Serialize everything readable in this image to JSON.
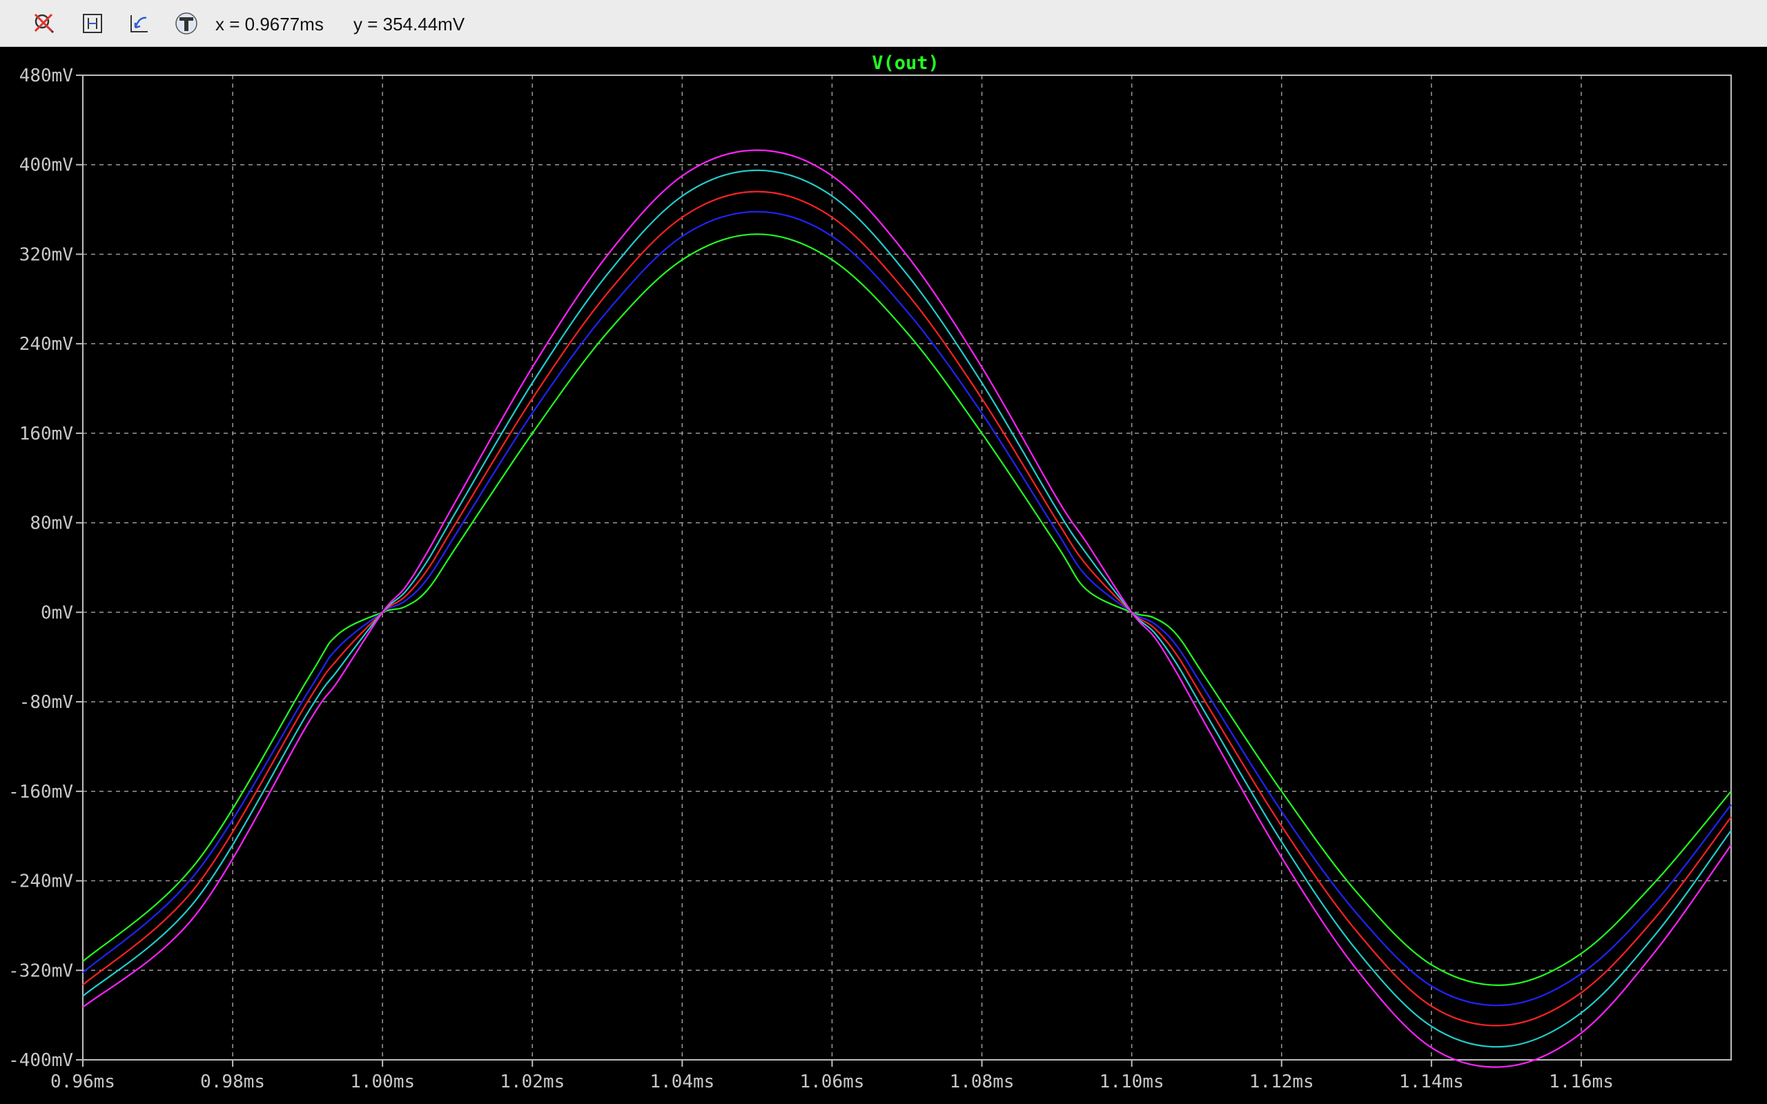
{
  "toolbar": {
    "buttons": [
      {
        "name": "autorange-icon",
        "label": "Autorange"
      },
      {
        "name": "zoom-extent-icon",
        "label": "Zoom to fit"
      },
      {
        "name": "zoom-back-icon",
        "label": "Zoom back"
      },
      {
        "name": "cursor-tool-icon",
        "label": "Cursor"
      }
    ],
    "readout_x": "x = 0.9677ms",
    "readout_y": "y = 354.44mV"
  },
  "chart_data": {
    "type": "line",
    "title": "V(out)",
    "title_color": "#22ff22",
    "xlabel": "",
    "ylabel": "",
    "xlim": [
      0.96,
      1.18
    ],
    "ylim": [
      -400,
      480
    ],
    "grid": true,
    "x_unit": "ms",
    "y_unit": "mV",
    "xticks": [
      "0.96ms",
      "0.98ms",
      "1.00ms",
      "1.02ms",
      "1.04ms",
      "1.06ms",
      "1.08ms",
      "1.10ms",
      "1.12ms",
      "1.14ms",
      "1.16ms"
    ],
    "xtick_values": [
      0.96,
      0.98,
      1.0,
      1.02,
      1.04,
      1.06,
      1.08,
      1.1,
      1.12,
      1.14,
      1.16
    ],
    "yticks": [
      "480mV",
      "400mV",
      "320mV",
      "240mV",
      "160mV",
      "80mV",
      "0mV",
      "-80mV",
      "-160mV",
      "-240mV",
      "-320mV",
      "-400mV"
    ],
    "ytick_values": [
      480,
      400,
      320,
      240,
      160,
      80,
      0,
      -80,
      -160,
      -240,
      -320,
      -400
    ],
    "series": [
      {
        "color": "#22ff22",
        "x": [
          0.96,
          0.975,
          0.99,
          0.994,
          1.0,
          1.003,
          1.006,
          1.01,
          1.02,
          1.03,
          1.04,
          1.05,
          1.06,
          1.07,
          1.08,
          1.09,
          1.094,
          1.1,
          1.103,
          1.106,
          1.11,
          1.12,
          1.13,
          1.14,
          1.15,
          1.16,
          1.17,
          1.18
        ],
        "y": [
          -312,
          -225,
          -60,
          -20,
          0,
          5,
          20,
          60,
          160,
          250,
          315,
          338,
          315,
          250,
          160,
          60,
          20,
          0,
          -5,
          -20,
          -60,
          -160,
          -250,
          -315,
          -333,
          -305,
          -240,
          -160
        ]
      },
      {
        "color": "#2222ff",
        "x": [
          0.96,
          0.975,
          0.99,
          0.994,
          1.0,
          1.003,
          1.006,
          1.01,
          1.02,
          1.03,
          1.04,
          1.05,
          1.06,
          1.07,
          1.08,
          1.09,
          1.094,
          1.1,
          1.103,
          1.106,
          1.11,
          1.12,
          1.13,
          1.14,
          1.15,
          1.16,
          1.17,
          1.18
        ],
        "y": [
          -322,
          -234,
          -72,
          -32,
          0,
          10,
          30,
          72,
          178,
          269,
          336,
          358,
          336,
          269,
          178,
          72,
          32,
          0,
          -10,
          -30,
          -72,
          -178,
          -269,
          -334,
          -351,
          -323,
          -258,
          -172
        ]
      },
      {
        "color": "#ff2222",
        "x": [
          0.96,
          0.975,
          0.99,
          0.994,
          1.0,
          1.003,
          1.006,
          1.01,
          1.02,
          1.03,
          1.04,
          1.05,
          1.06,
          1.07,
          1.08,
          1.09,
          1.094,
          1.1,
          1.103,
          1.106,
          1.11,
          1.12,
          1.13,
          1.14,
          1.15,
          1.16,
          1.17,
          1.18
        ],
        "y": [
          -333,
          -246,
          -80,
          -42,
          0,
          14,
          38,
          82,
          191,
          285,
          353,
          376,
          353,
          285,
          191,
          82,
          42,
          0,
          -14,
          -38,
          -82,
          -191,
          -285,
          -352,
          -369,
          -340,
          -272,
          -183
        ]
      },
      {
        "color": "#22cccc",
        "x": [
          0.96,
          0.975,
          0.99,
          0.994,
          1.0,
          1.003,
          1.006,
          1.01,
          1.02,
          1.03,
          1.04,
          1.05,
          1.06,
          1.07,
          1.08,
          1.09,
          1.094,
          1.1,
          1.103,
          1.106,
          1.11,
          1.12,
          1.13,
          1.14,
          1.15,
          1.16,
          1.17,
          1.18
        ],
        "y": [
          -343,
          -258,
          -90,
          -52,
          0,
          18,
          46,
          92,
          205,
          302,
          372,
          395,
          372,
          302,
          205,
          92,
          52,
          0,
          -18,
          -46,
          -92,
          -205,
          -302,
          -370,
          -388,
          -358,
          -287,
          -195
        ]
      },
      {
        "color": "#ff22ff",
        "x": [
          0.96,
          0.975,
          0.99,
          0.994,
          1.0,
          1.003,
          1.006,
          1.01,
          1.02,
          1.03,
          1.04,
          1.05,
          1.06,
          1.07,
          1.08,
          1.09,
          1.094,
          1.1,
          1.103,
          1.106,
          1.11,
          1.12,
          1.13,
          1.14,
          1.15,
          1.16,
          1.17,
          1.18
        ],
        "y": [
          -353,
          -271,
          -100,
          -62,
          0,
          22,
          54,
          102,
          219,
          319,
          390,
          413,
          390,
          319,
          219,
          102,
          62,
          0,
          -22,
          -54,
          -102,
          -219,
          -319,
          -389,
          -406,
          -376,
          -302,
          -208
        ]
      }
    ]
  }
}
